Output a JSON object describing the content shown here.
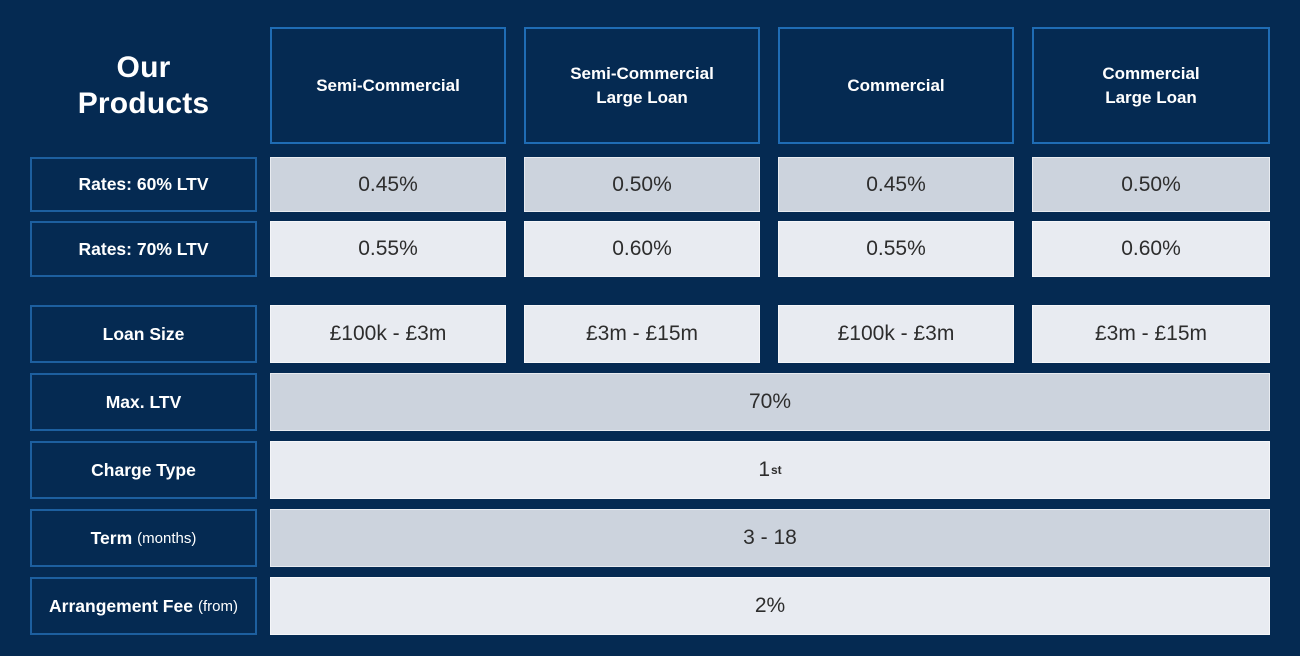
{
  "title": {
    "line1": "Our",
    "line2": "Products"
  },
  "colors": {
    "background": "#052a52",
    "header_border": "#1f6cb4",
    "label_border": "#1d5f9f",
    "cell_dark": "#ccd3dd",
    "cell_light": "#e8ebf1",
    "cell_text": "#2d2d2d",
    "label_text": "#ffffff"
  },
  "chart_data": {
    "type": "table",
    "title": "Our Products",
    "columns": [
      "Semi-Commercial",
      "Semi-Commercial Large Loan",
      "Commercial",
      "Commercial Large Loan"
    ],
    "header_lines": [
      {
        "line1": "Semi-Commercial",
        "line2": ""
      },
      {
        "line1": "Semi-Commercial",
        "line2": "Large Loan"
      },
      {
        "line1": "Commercial",
        "line2": ""
      },
      {
        "line1": "Commercial",
        "line2": "Large Loan"
      }
    ],
    "rows": [
      {
        "label": "Rates: 60% LTV",
        "values": [
          "0.45%",
          "0.50%",
          "0.45%",
          "0.50%"
        ]
      },
      {
        "label": "Rates: 70% LTV",
        "values": [
          "0.55%",
          "0.60%",
          "0.55%",
          "0.60%"
        ]
      },
      {
        "label": "Loan Size",
        "values": [
          "£100k - £3m",
          "£3m - £15m",
          "£100k - £3m",
          "£3m - £15m"
        ]
      },
      {
        "label": "Max. LTV",
        "value": "70%",
        "spans_all_columns": true
      },
      {
        "label": "Charge Type",
        "value_base": "1",
        "value_sup": "st",
        "spans_all_columns": true
      },
      {
        "label": "Term",
        "label_note": "(months)",
        "value": "3 - 18",
        "spans_all_columns": true
      },
      {
        "label": "Arrangement Fee",
        "label_note": "(from)",
        "value": "2%",
        "spans_all_columns": true
      }
    ]
  }
}
